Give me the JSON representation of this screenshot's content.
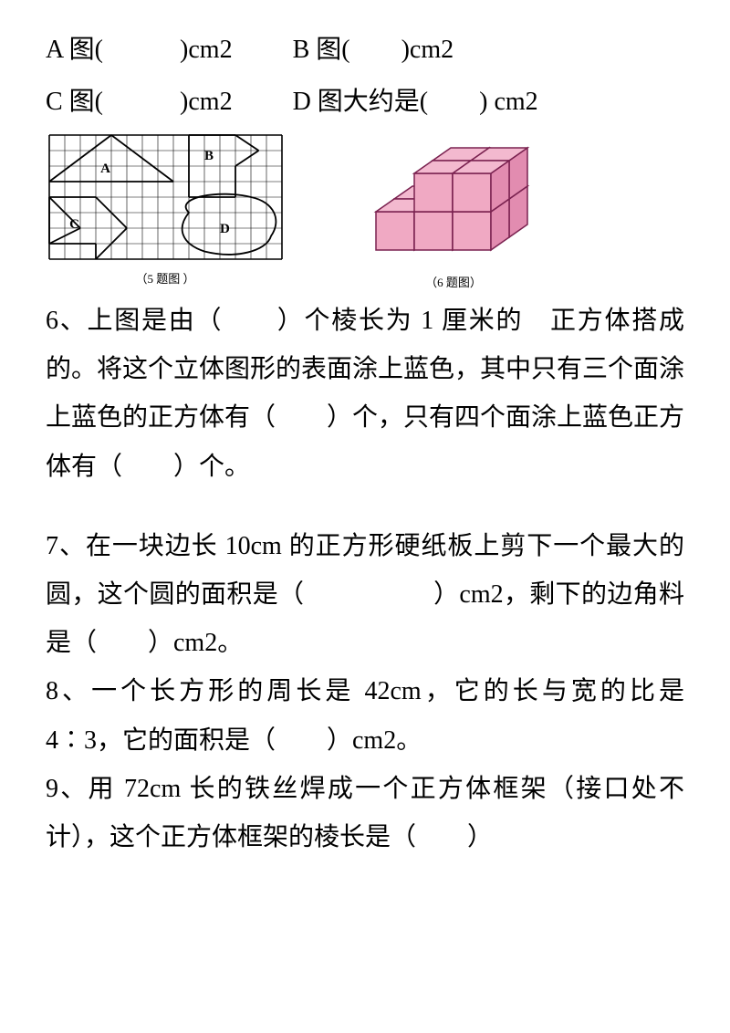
{
  "q5": {
    "lineA": "A 图(",
    "lineA_end": ")cm2",
    "lineB": "B 图(",
    "lineB_end": ")cm2",
    "lineC": "C 图(",
    "lineC_end": ")cm2",
    "lineD": "D 图大约是(",
    "lineD_end": ") cm2",
    "caption": "（5 题图 ）",
    "grid": {
      "cols": 15,
      "rows": 8,
      "cell": 17,
      "stroke": "#000000",
      "labels": {
        "A": "A",
        "B": "B",
        "C": "C",
        "D": "D"
      }
    }
  },
  "q6": {
    "caption": "（6 题图）",
    "text": "6、上图是由（　　）个棱长为 1 厘米的 正方体搭成的。将这个立体图形的表面涂上蓝色，其中只有三个面涂上蓝色的正方体有（　　）个，只有四个面涂上蓝色正方体有（　　）个。",
    "cube": {
      "fill_top": "#f3b9cf",
      "fill_left": "#f0a9c3",
      "fill_right": "#e28cb0",
      "stroke": "#7a2250"
    }
  },
  "q7": {
    "text": "7、在一块边长 10cm 的正方形硬纸板上剪下一个最大的圆，这个圆的面积是（　　　　　）cm2，剩下的边角料是（　　）cm2。"
  },
  "q8": {
    "text": "8、一个长方形的周长是 42cm，它的长与宽的比是 4∶3，它的面积是（　　）cm2。"
  },
  "q9": {
    "text": "9、用 72cm 长的铁丝焊成一个正方体框架（接口处不计），这个正方体框架的棱长是（　　）"
  },
  "colors": {
    "text": "#000000",
    "bg": "#ffffff"
  }
}
